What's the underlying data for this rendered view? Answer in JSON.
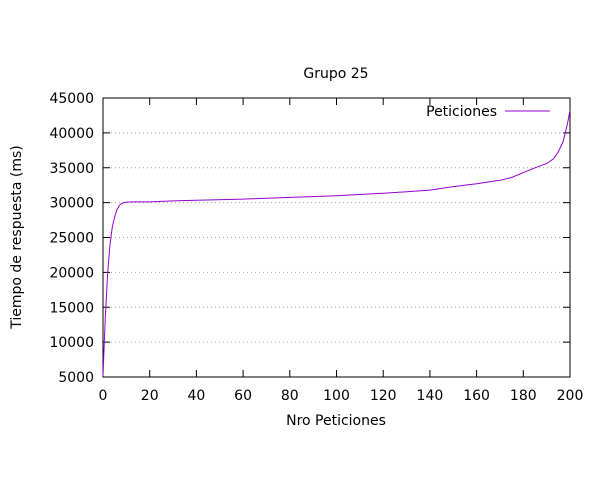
{
  "chart_data": {
    "type": "line",
    "title": "Grupo 25",
    "xlabel": "Nro Peticiones",
    "ylabel": "Tiempo de respuesta (ms)",
    "xlim": [
      0,
      200
    ],
    "ylim": [
      5000,
      45000
    ],
    "xticks": [
      0,
      20,
      40,
      60,
      80,
      100,
      120,
      140,
      160,
      180,
      200
    ],
    "yticks": [
      5000,
      10000,
      15000,
      20000,
      25000,
      30000,
      35000,
      40000,
      45000
    ],
    "grid": "horizontal-dotted",
    "legend_position": "top-right",
    "series": [
      {
        "name": "Peticiones",
        "color": "#9400D3",
        "x": [
          0,
          1,
          2,
          3,
          4,
          5,
          6,
          7,
          8,
          9,
          10,
          12,
          15,
          20,
          30,
          40,
          60,
          80,
          100,
          120,
          130,
          140,
          150,
          160,
          170,
          175,
          180,
          185,
          190,
          193,
          195,
          197,
          198,
          199,
          200
        ],
        "y": [
          5200,
          13500,
          20000,
          24000,
          26500,
          28000,
          29000,
          29600,
          29900,
          30000,
          30050,
          30100,
          30100,
          30100,
          30250,
          30350,
          30500,
          30750,
          31000,
          31350,
          31550,
          31800,
          32300,
          32700,
          33200,
          33600,
          34300,
          35000,
          35600,
          36300,
          37300,
          38700,
          40000,
          41500,
          43200
        ]
      }
    ]
  }
}
